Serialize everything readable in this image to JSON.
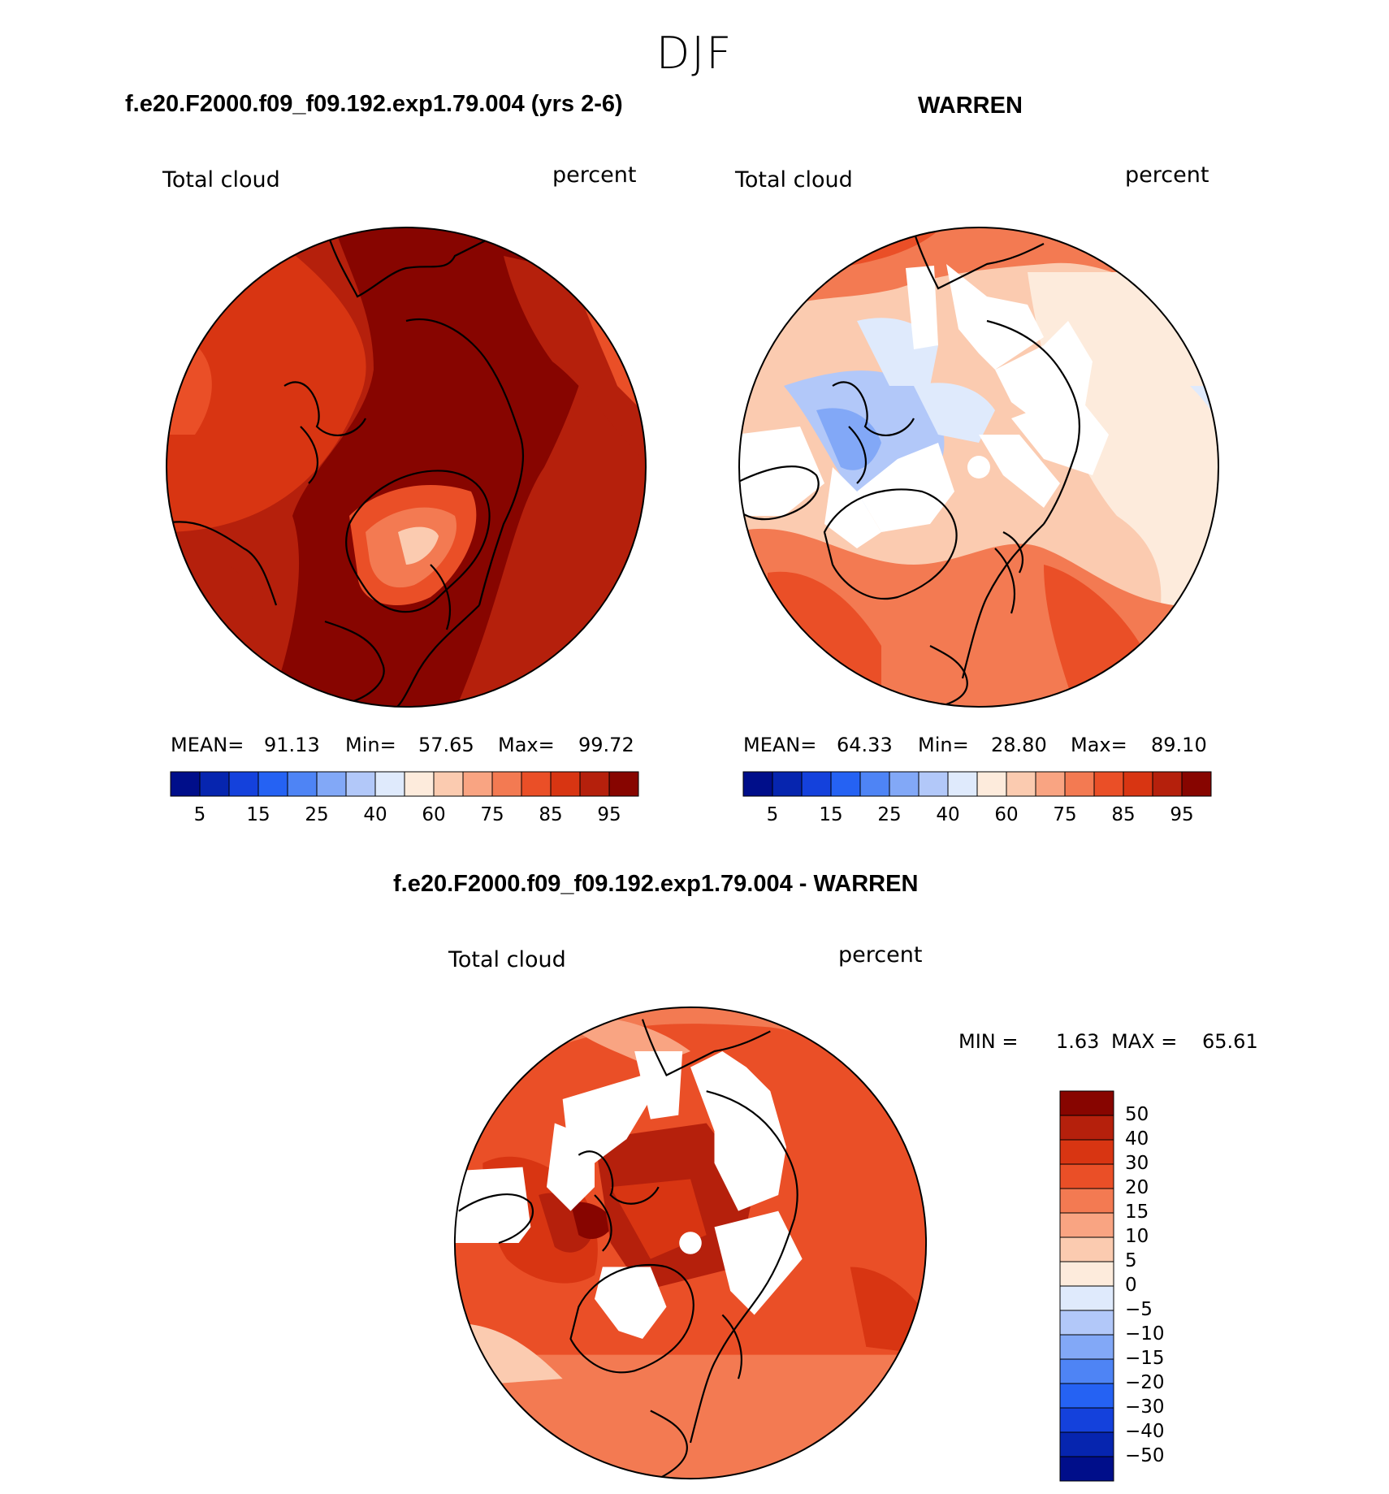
{
  "page_title": "DJF",
  "panels": [
    {
      "title": "f.e20.F2000.f09_f09.192.exp1.79.004 (yrs 2-6)",
      "variable": "Total cloud",
      "units": "percent",
      "stats": {
        "mean_label": "MEAN=",
        "mean": "91.13",
        "min_label": "Min=",
        "min": "57.65",
        "max_label": "Max=",
        "max": "99.72"
      }
    },
    {
      "title": "WARREN",
      "variable": "Total cloud",
      "units": "percent",
      "stats": {
        "mean_label": "MEAN=",
        "mean": "64.33",
        "min_label": "Min=",
        "min": "28.80",
        "max_label": "Max=",
        "max": "89.10"
      }
    },
    {
      "title": "f.e20.F2000.f09_f09.192.exp1.79.004 - WARREN",
      "variable": "Total cloud",
      "units": "percent",
      "stats": {
        "min_label": "MIN =",
        "min": "1.63",
        "max_label": "MAX =",
        "max": "65.61"
      }
    }
  ],
  "chart_data": [
    {
      "type": "heatmap",
      "title": "f.e20.F2000.f09_f09.192.exp1.79.004 (yrs 2-6)",
      "projection": "north-polar-stereographic",
      "field": "Total cloud (percent)",
      "mean": 91.13,
      "min": 57.65,
      "max": 99.72,
      "colorbar": {
        "orientation": "horizontal",
        "tick_labels": [
          "5",
          "15",
          "25",
          "40",
          "60",
          "75",
          "85",
          "95"
        ],
        "colors": [
          "#000e8a",
          "#0625af",
          "#1441dc",
          "#2562f3",
          "#4e84f5",
          "#82a8f7",
          "#b2c8f9",
          "#dfeafc",
          "#fdebdc",
          "#fbcbb0",
          "#f9a482",
          "#f37a52",
          "#ea4f27",
          "#d83512",
          "#b5200c",
          "#870500"
        ]
      },
      "dominant_range": "85-100"
    },
    {
      "type": "heatmap",
      "title": "WARREN",
      "projection": "north-polar-stereographic",
      "field": "Total cloud (percent)",
      "mean": 64.33,
      "min": 28.8,
      "max": 89.1,
      "colorbar": {
        "orientation": "horizontal",
        "tick_labels": [
          "5",
          "15",
          "25",
          "40",
          "60",
          "75",
          "85",
          "95"
        ],
        "colors": [
          "#000e8a",
          "#0625af",
          "#1441dc",
          "#2562f3",
          "#4e84f5",
          "#82a8f7",
          "#b2c8f9",
          "#dfeafc",
          "#fdebdc",
          "#fbcbb0",
          "#f9a482",
          "#f37a52",
          "#ea4f27",
          "#d83512",
          "#b5200c",
          "#870500"
        ]
      },
      "dominant_range": "40-85"
    },
    {
      "type": "heatmap",
      "title": "f.e20.F2000.f09_f09.192.exp1.79.004 - WARREN",
      "projection": "north-polar-stereographic",
      "field": "Total cloud (percent)",
      "min": 1.63,
      "max": 65.61,
      "colorbar": {
        "orientation": "vertical",
        "tick_labels": [
          "50",
          "40",
          "30",
          "20",
          "15",
          "10",
          "5",
          "0",
          "−5",
          "−10",
          "−15",
          "−20",
          "−30",
          "−40",
          "−50"
        ],
        "colors": [
          "#870500",
          "#b5200c",
          "#d83512",
          "#ea4f27",
          "#f37a52",
          "#f9a482",
          "#fbcbb0",
          "#fdebdc",
          "#dfeafc",
          "#b2c8f9",
          "#82a8f7",
          "#4e84f5",
          "#2562f3",
          "#1441dc",
          "#0625af",
          "#000e8a"
        ]
      },
      "dominant_range": "10-40"
    }
  ]
}
